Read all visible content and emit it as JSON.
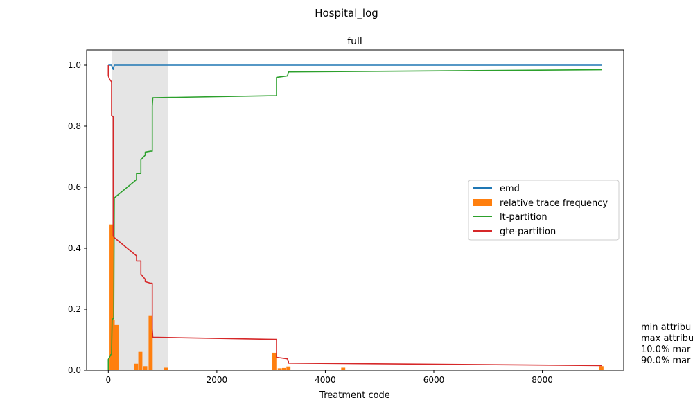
{
  "figure": {
    "suptitle": "Hospital_log",
    "side_notes": [
      "min attribu",
      "max attribu",
      "10.0% mar",
      "90.0% mar"
    ]
  },
  "chart_data": {
    "type": "line",
    "title": "full",
    "xlabel": "Treatment code",
    "ylabel": "",
    "xlim": [
      -400,
      9500
    ],
    "ylim": [
      0,
      1.05
    ],
    "xticks": [
      0,
      2000,
      4000,
      6000,
      8000
    ],
    "yticks": [
      0.0,
      0.2,
      0.4,
      0.6,
      0.8,
      1.0
    ],
    "xtick_labels": [
      "0",
      "2000",
      "4000",
      "6000",
      "8000"
    ],
    "ytick_labels": [
      "0.0",
      "0.2",
      "0.4",
      "0.6",
      "0.8",
      "1.0"
    ],
    "grid": false,
    "legend_position": "center-right",
    "shaded_range": [
      60,
      1100
    ],
    "series": [
      {
        "name": "emd",
        "kind": "line",
        "color": "#1f77b4",
        "x": [
          0,
          60,
          90,
          110,
          9100
        ],
        "y": [
          1.0,
          1.0,
          0.986,
          1.0,
          1.0
        ]
      },
      {
        "name": "relative trace frequency",
        "kind": "bar",
        "color": "#ff7f0e",
        "x": [
          60,
          80,
          150,
          510,
          590,
          680,
          780,
          1060,
          3060,
          3160,
          3240,
          3320,
          4330,
          9090
        ],
        "y": [
          0.478,
          0.165,
          0.148,
          0.021,
          0.062,
          0.013,
          0.178,
          0.008,
          0.057,
          0.006,
          0.007,
          0.012,
          0.008,
          0.013
        ]
      },
      {
        "name": "lt-partition",
        "kind": "line",
        "color": "#2ca02c",
        "x": [
          0,
          0,
          60,
          70,
          90,
          100,
          110,
          520,
          520,
          600,
          600,
          680,
          680,
          780,
          810,
          810,
          820,
          3100,
          3100,
          3300,
          3320,
          3320,
          9100
        ],
        "y": [
          0.0,
          0.035,
          0.055,
          0.165,
          0.17,
          0.17,
          0.565,
          0.625,
          0.645,
          0.645,
          0.69,
          0.705,
          0.715,
          0.718,
          0.718,
          0.865,
          0.893,
          0.9,
          0.96,
          0.965,
          0.975,
          0.978,
          0.985
        ]
      },
      {
        "name": "gte-partition",
        "kind": "line",
        "color": "#d62728",
        "x": [
          0,
          0,
          20,
          60,
          60,
          90,
          90,
          110,
          520,
          520,
          600,
          600,
          680,
          680,
          780,
          810,
          810,
          820,
          3100,
          3100,
          3300,
          3320,
          3320,
          9100
        ],
        "y": [
          1.0,
          0.965,
          0.955,
          0.945,
          0.835,
          0.83,
          0.44,
          0.435,
          0.375,
          0.358,
          0.358,
          0.315,
          0.298,
          0.29,
          0.285,
          0.285,
          0.135,
          0.108,
          0.101,
          0.042,
          0.037,
          0.03,
          0.023,
          0.015
        ]
      }
    ]
  }
}
